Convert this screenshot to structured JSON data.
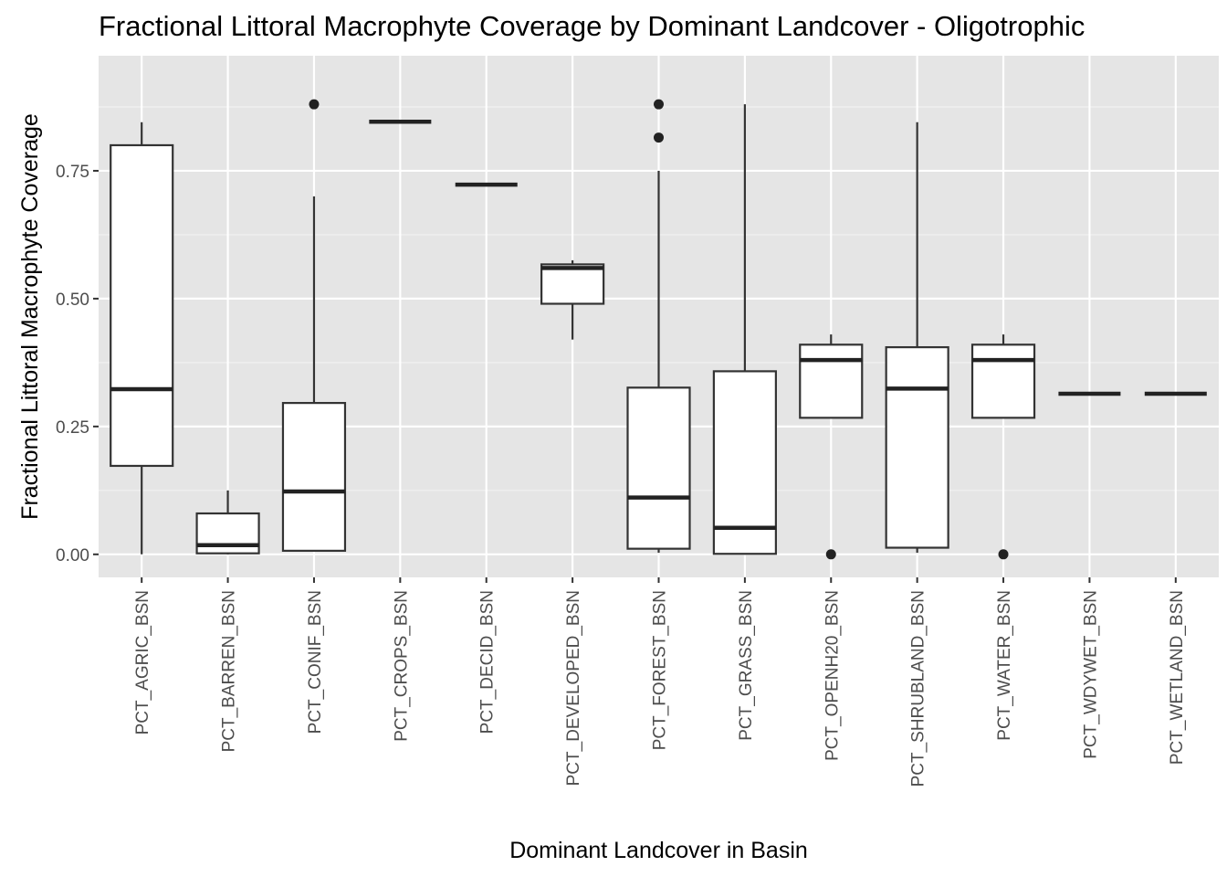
{
  "chart_data": {
    "type": "boxplot",
    "title": "Fractional Littoral Macrophyte Coverage by Dominant Landcover - Oligotrophic",
    "xlabel": "Dominant Landcover in Basin",
    "ylabel": "Fractional Littoral Macrophyte Coverage",
    "ylim": [
      -0.045,
      0.975
    ],
    "yticks": [
      0.0,
      0.25,
      0.5,
      0.75
    ],
    "ytick_labels": [
      "0.00",
      "0.25",
      "0.50",
      "0.75"
    ],
    "grid": true,
    "legend": "none",
    "colors": {
      "panel": "#e5e5e5",
      "grid_major": "#ffffff",
      "grid_minor": "#f2f2f2",
      "box_fill": "#ffffff",
      "box_line": "#333333",
      "median_line": "#222222",
      "outlier": "#222222"
    },
    "categories": [
      "PCT_AGRIC_BSN",
      "PCT_BARREN_BSN",
      "PCT_CONIF_BSN",
      "PCT_CROPS_BSN",
      "PCT_DECID_BSN",
      "PCT_DEVELOPED_BSN",
      "PCT_FOREST_BSN",
      "PCT_GRASS_BSN",
      "PCT_OPENH20_BSN",
      "PCT_SHRUBLAND_BSN",
      "PCT_WATER_BSN",
      "PCT_WDYWET_BSN",
      "PCT_WETLAND_BSN"
    ],
    "boxes": [
      {
        "category": "PCT_AGRIC_BSN",
        "min": 0.0,
        "q1": 0.173,
        "median": 0.323,
        "q3": 0.8,
        "max": 0.845,
        "outliers": []
      },
      {
        "category": "PCT_BARREN_BSN",
        "min": 0.0,
        "q1": 0.002,
        "median": 0.018,
        "q3": 0.08,
        "max": 0.125,
        "outliers": []
      },
      {
        "category": "PCT_CONIF_BSN",
        "min": 0.005,
        "q1": 0.007,
        "median": 0.123,
        "q3": 0.296,
        "max": 0.7,
        "outliers": [
          0.88
        ]
      },
      {
        "category": "PCT_CROPS_BSN",
        "min": 0.846,
        "q1": 0.846,
        "median": 0.846,
        "q3": 0.846,
        "max": 0.846,
        "outliers": []
      },
      {
        "category": "PCT_DECID_BSN",
        "min": 0.723,
        "q1": 0.723,
        "median": 0.723,
        "q3": 0.723,
        "max": 0.723,
        "outliers": []
      },
      {
        "category": "PCT_DEVELOPED_BSN",
        "min": 0.42,
        "q1": 0.49,
        "median": 0.56,
        "q3": 0.567,
        "max": 0.575,
        "outliers": []
      },
      {
        "category": "PCT_FOREST_BSN",
        "min": 0.003,
        "q1": 0.011,
        "median": 0.111,
        "q3": 0.326,
        "max": 0.75,
        "outliers": [
          0.815,
          0.88
        ]
      },
      {
        "category": "PCT_GRASS_BSN",
        "min": 0.0,
        "q1": 0.001,
        "median": 0.052,
        "q3": 0.358,
        "max": 0.88,
        "outliers": []
      },
      {
        "category": "PCT_OPENH20_BSN",
        "min": 0.267,
        "q1": 0.267,
        "median": 0.38,
        "q3": 0.41,
        "max": 0.43,
        "outliers": [
          0.0
        ]
      },
      {
        "category": "PCT_SHRUBLAND_BSN",
        "min": 0.003,
        "q1": 0.013,
        "median": 0.324,
        "q3": 0.405,
        "max": 0.845,
        "outliers": []
      },
      {
        "category": "PCT_WATER_BSN",
        "min": 0.267,
        "q1": 0.267,
        "median": 0.38,
        "q3": 0.41,
        "max": 0.43,
        "outliers": [
          0.0
        ]
      },
      {
        "category": "PCT_WDYWET_BSN",
        "min": 0.314,
        "q1": 0.314,
        "median": 0.314,
        "q3": 0.314,
        "max": 0.314,
        "outliers": []
      },
      {
        "category": "PCT_WETLAND_BSN",
        "min": 0.314,
        "q1": 0.314,
        "median": 0.314,
        "q3": 0.314,
        "max": 0.314,
        "outliers": []
      }
    ]
  }
}
